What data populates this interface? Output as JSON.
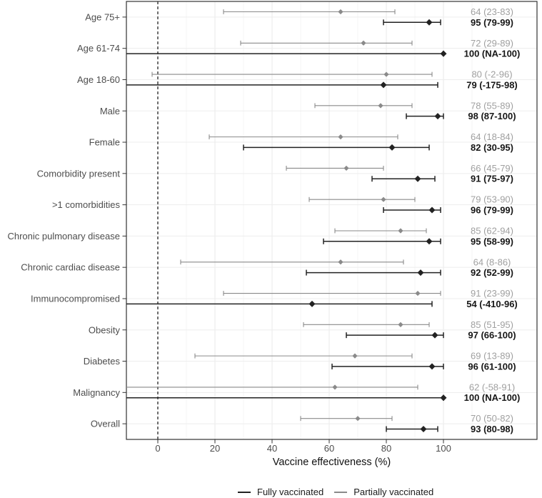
{
  "chart_data": {
    "type": "forest",
    "title": "",
    "xlabel": "Vaccine effectiveness (%)",
    "x_ticks": [
      0,
      20,
      40,
      60,
      80,
      100
    ],
    "x_range": [
      -11,
      132.75
    ],
    "reference_line_x": 0,
    "value_label_x": 117,
    "grid": "on",
    "legend_position": "bottom",
    "series": [
      {
        "key": "full",
        "name": "Fully vaccinated",
        "color": "#222222"
      },
      {
        "key": "partial",
        "name": "Partially vaccinated",
        "color": "#8a8a8a"
      }
    ],
    "categories": [
      {
        "name": "Age 75+",
        "partial": {
          "est": 64,
          "lo": 23,
          "hi": 83,
          "label": "64 (23-83)"
        },
        "full": {
          "est": 95,
          "lo": 79,
          "hi": 99,
          "label": "95 (79-99)"
        }
      },
      {
        "name": "Age 61-74",
        "partial": {
          "est": 72,
          "lo": 29,
          "hi": 89,
          "label": "72 (29-89)"
        },
        "full": {
          "est": 100,
          "lo": null,
          "lo_text": "NA",
          "hi": 100,
          "label": "100 (NA-100)"
        }
      },
      {
        "name": "Age 18-60",
        "partial": {
          "est": 80,
          "lo": -2,
          "hi": 96,
          "label": "80 (-2-96)"
        },
        "full": {
          "est": 79,
          "lo": -175,
          "hi": 98,
          "label": "79 (-175-98)"
        }
      },
      {
        "name": "Male",
        "partial": {
          "est": 78,
          "lo": 55,
          "hi": 89,
          "label": "78 (55-89)"
        },
        "full": {
          "est": 98,
          "lo": 87,
          "hi": 100,
          "label": "98 (87-100)"
        }
      },
      {
        "name": "Female",
        "partial": {
          "est": 64,
          "lo": 18,
          "hi": 84,
          "label": "64 (18-84)"
        },
        "full": {
          "est": 82,
          "lo": 30,
          "hi": 95,
          "label": "82 (30-95)"
        }
      },
      {
        "name": "Comorbidity present",
        "partial": {
          "est": 66,
          "lo": 45,
          "hi": 79,
          "label": "66 (45-79)"
        },
        "full": {
          "est": 91,
          "lo": 75,
          "hi": 97,
          "label": "91 (75-97)"
        }
      },
      {
        "name": ">1 comorbidities",
        "partial": {
          "est": 79,
          "lo": 53,
          "hi": 90,
          "label": "79 (53-90)"
        },
        "full": {
          "est": 96,
          "lo": 79,
          "hi": 99,
          "label": "96 (79-99)"
        }
      },
      {
        "name": "Chronic pulmonary disease",
        "partial": {
          "est": 85,
          "lo": 62,
          "hi": 94,
          "label": "85 (62-94)"
        },
        "full": {
          "est": 95,
          "lo": 58,
          "hi": 99,
          "label": "95 (58-99)"
        }
      },
      {
        "name": "Chronic cardiac disease",
        "partial": {
          "est": 64,
          "lo": 8,
          "hi": 86,
          "label": "64 (8-86)"
        },
        "full": {
          "est": 92,
          "lo": 52,
          "hi": 99,
          "label": "92 (52-99)"
        }
      },
      {
        "name": "Immunocompromised",
        "partial": {
          "est": 91,
          "lo": 23,
          "hi": 99,
          "label": "91 (23-99)"
        },
        "full": {
          "est": 54,
          "lo": -410,
          "hi": 96,
          "label": "54 (-410-96)"
        }
      },
      {
        "name": "Obesity",
        "partial": {
          "est": 85,
          "lo": 51,
          "hi": 95,
          "label": "85 (51-95)"
        },
        "full": {
          "est": 97,
          "lo": 66,
          "hi": 100,
          "label": "97 (66-100)"
        }
      },
      {
        "name": "Diabetes",
        "partial": {
          "est": 69,
          "lo": 13,
          "hi": 89,
          "label": "69 (13-89)"
        },
        "full": {
          "est": 96,
          "lo": 61,
          "hi": 100,
          "label": "96 (61-100)"
        }
      },
      {
        "name": "Malignancy",
        "partial": {
          "est": 62,
          "lo": -58,
          "hi": 91,
          "label": "62 (-58-91)"
        },
        "full": {
          "est": 100,
          "lo": null,
          "lo_text": "NA",
          "hi": 100,
          "label": "100 (NA-100)"
        }
      },
      {
        "name": "Overall",
        "partial": {
          "est": 70,
          "lo": 50,
          "hi": 82,
          "label": "70 (50-82)"
        },
        "full": {
          "est": 93,
          "lo": 80,
          "hi": 98,
          "label": "93 (80-98)"
        }
      }
    ],
    "colors": {
      "full": "#222222",
      "partial": "#8a8a8a",
      "full_label": "#161616",
      "partial_label": "#a0a0a0",
      "grid_major": "#e9e9e9",
      "grid_minor": "#f5f5f5",
      "row_grid": "#ededed",
      "panel_border": "#333333",
      "axis_tick": "#333333",
      "tick_label": "#4d4d4d",
      "category_label": "#4d4d4d",
      "reference_line": "#111111"
    }
  }
}
